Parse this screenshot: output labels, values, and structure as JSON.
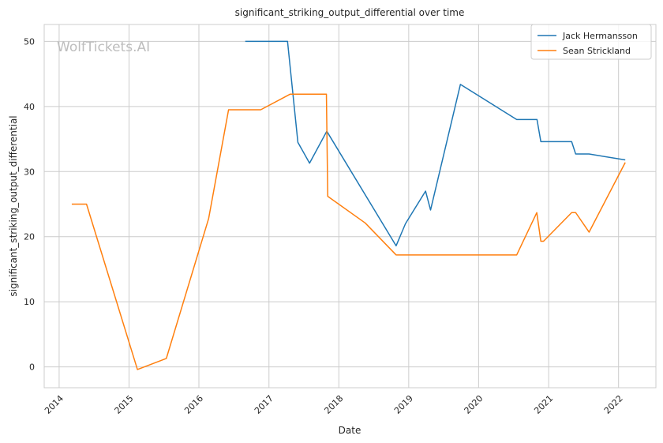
{
  "chart_data": {
    "type": "line",
    "title": "significant_striking_output_differential over time",
    "xlabel": "Date",
    "ylabel": "significant_striking_output_differential",
    "watermark": "WolfTickets.AI",
    "xlim": [
      "2013-10-15",
      "2022-07-15"
    ],
    "ylim": [
      -3.2,
      52.6
    ],
    "x_ticks": [
      "2014",
      "2015",
      "2016",
      "2017",
      "2018",
      "2019",
      "2020",
      "2021",
      "2022"
    ],
    "y_ticks": [
      0,
      10,
      20,
      30,
      40,
      50
    ],
    "grid": true,
    "legend_position": "top-right",
    "series": [
      {
        "name": "Jack Hermansson",
        "color": "#1f77b4",
        "points": [
          [
            "2016-08-30",
            50.0
          ],
          [
            "2017-04-08",
            50.0
          ],
          [
            "2017-06-01",
            34.5
          ],
          [
            "2017-08-01",
            31.3
          ],
          [
            "2017-10-30",
            36.2
          ],
          [
            "2018-10-27",
            18.6
          ],
          [
            "2018-12-15",
            22.0
          ],
          [
            "2019-03-30",
            27.0
          ],
          [
            "2019-04-25",
            24.1
          ],
          [
            "2019-09-28",
            43.4
          ],
          [
            "2020-07-18",
            38.0
          ],
          [
            "2020-11-01",
            38.0
          ],
          [
            "2020-11-21",
            34.6
          ],
          [
            "2021-05-01",
            34.6
          ],
          [
            "2021-05-22",
            32.7
          ],
          [
            "2021-07-31",
            32.7
          ],
          [
            "2022-02-05",
            31.8
          ]
        ]
      },
      {
        "name": "Sean Strickland",
        "color": "#ff7f0e",
        "points": [
          [
            "2014-03-08",
            25.0
          ],
          [
            "2014-05-24",
            25.0
          ],
          [
            "2015-02-14",
            -0.4
          ],
          [
            "2015-07-15",
            1.3
          ],
          [
            "2016-02-21",
            22.8
          ],
          [
            "2016-06-04",
            39.5
          ],
          [
            "2016-11-19",
            39.5
          ],
          [
            "2017-04-22",
            41.9
          ],
          [
            "2017-10-28",
            41.9
          ],
          [
            "2017-11-04",
            26.2
          ],
          [
            "2018-05-19",
            22.1
          ],
          [
            "2018-10-27",
            17.2
          ],
          [
            "2020-07-18",
            17.2
          ],
          [
            "2020-10-31",
            23.7
          ],
          [
            "2020-11-21",
            19.3
          ],
          [
            "2020-12-05",
            19.3
          ],
          [
            "2021-05-01",
            23.7
          ],
          [
            "2021-05-22",
            23.7
          ],
          [
            "2021-07-31",
            20.7
          ],
          [
            "2022-02-05",
            31.4
          ]
        ]
      }
    ]
  }
}
